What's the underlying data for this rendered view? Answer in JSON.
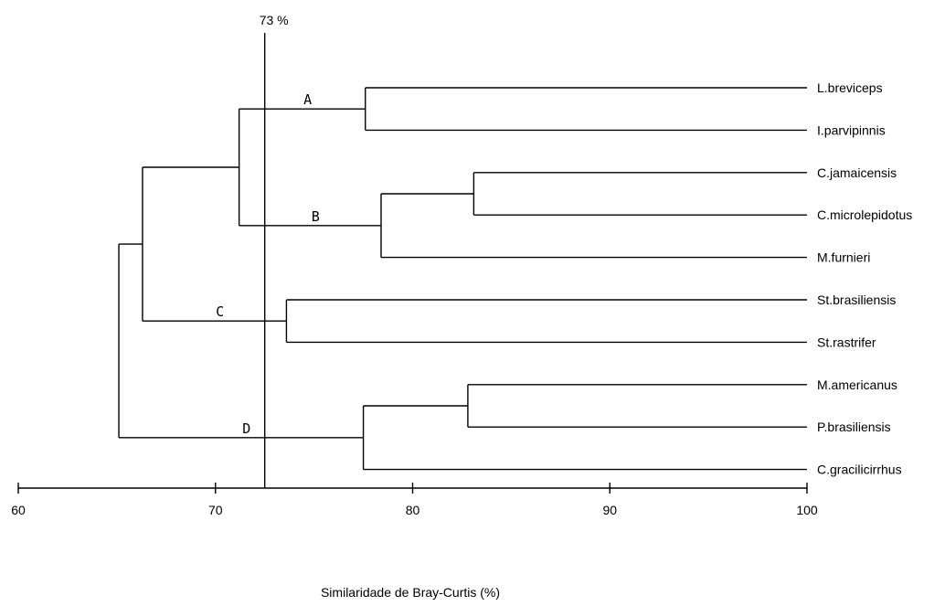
{
  "chart_data": {
    "type": "dendrogram",
    "xlabel": "Similaridade de Bray-Curtis (%)",
    "xlim": [
      60,
      100
    ],
    "ticks": [
      60,
      70,
      80,
      90,
      100
    ],
    "threshold": {
      "value": 72.5,
      "label": "73 %"
    },
    "leaves": [
      "L.breviceps",
      "I.parvipinnis",
      "C.jamaicensis",
      "C.microlepidotus",
      "M.furnieri",
      "St.brasiliensis",
      "St.rastrifer",
      "M.americanus",
      "P.brasiliensis",
      "C.gracilicirrhus"
    ],
    "merges": [
      {
        "id": "n1",
        "children": [
          "L.breviceps",
          "I.parvipinnis"
        ],
        "similarity": 77.6,
        "cluster_label": "A"
      },
      {
        "id": "n2",
        "children": [
          "C.jamaicensis",
          "C.microlepidotus"
        ],
        "similarity": 83.1
      },
      {
        "id": "n3",
        "children": [
          "n2",
          "M.furnieri"
        ],
        "similarity": 78.4,
        "cluster_label": "B"
      },
      {
        "id": "n4",
        "children": [
          "n1",
          "n3"
        ],
        "similarity": 71.2
      },
      {
        "id": "n5",
        "children": [
          "St.brasiliensis",
          "St.rastrifer"
        ],
        "similarity": 73.6,
        "cluster_label": "C"
      },
      {
        "id": "n6",
        "children": [
          "n4",
          "n5"
        ],
        "similarity": 66.3
      },
      {
        "id": "n7",
        "children": [
          "M.americanus",
          "P.brasiliensis"
        ],
        "similarity": 82.8
      },
      {
        "id": "n8",
        "children": [
          "n7",
          "C.gracilicirrhus"
        ],
        "similarity": 77.5,
        "cluster_label": "D"
      },
      {
        "id": "n9",
        "children": [
          "n6",
          "n8"
        ],
        "similarity": 65.1
      }
    ]
  }
}
